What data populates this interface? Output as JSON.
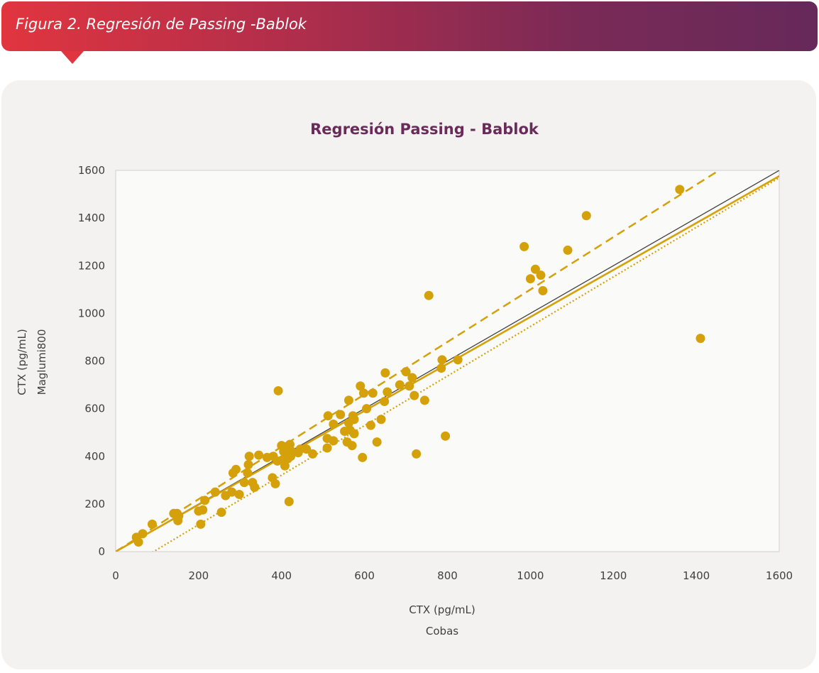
{
  "figure": {
    "caption": "Figura 2. Regresión de Passing -Bablok"
  },
  "colors": {
    "accent": "#d4a10a",
    "identity": "#404040",
    "title": "#6b2b5a"
  },
  "chart_data": {
    "type": "scatter",
    "title": "Regresión Passing - Bablok",
    "xlabel": "CTX (pg/mL)",
    "xsublabel": "Cobas",
    "ylabel": "CTX (pg/mL)",
    "ysublabel": "Maglumi800",
    "xlim": [
      0,
      1600
    ],
    "ylim": [
      0,
      1600
    ],
    "xticks": [
      0,
      200,
      400,
      600,
      800,
      1000,
      1200,
      1400,
      1600
    ],
    "yticks": [
      0,
      200,
      400,
      600,
      800,
      1000,
      1200,
      1400,
      1600
    ],
    "grid": false,
    "points": [
      [
        50,
        60
      ],
      [
        55,
        40
      ],
      [
        65,
        75
      ],
      [
        88,
        115
      ],
      [
        140,
        160
      ],
      [
        148,
        160
      ],
      [
        150,
        130
      ],
      [
        152,
        150
      ],
      [
        200,
        170
      ],
      [
        205,
        115
      ],
      [
        210,
        175
      ],
      [
        215,
        215
      ],
      [
        240,
        250
      ],
      [
        255,
        165
      ],
      [
        265,
        235
      ],
      [
        280,
        250
      ],
      [
        283,
        330
      ],
      [
        290,
        345
      ],
      [
        298,
        240
      ],
      [
        310,
        290
      ],
      [
        318,
        330
      ],
      [
        320,
        365
      ],
      [
        322,
        400
      ],
      [
        330,
        290
      ],
      [
        335,
        270
      ],
      [
        345,
        405
      ],
      [
        365,
        395
      ],
      [
        378,
        310
      ],
      [
        380,
        400
      ],
      [
        385,
        285
      ],
      [
        390,
        380
      ],
      [
        392,
        675
      ],
      [
        400,
        445
      ],
      [
        402,
        385
      ],
      [
        405,
        420
      ],
      [
        408,
        360
      ],
      [
        410,
        440
      ],
      [
        412,
        420
      ],
      [
        415,
        390
      ],
      [
        418,
        210
      ],
      [
        420,
        450
      ],
      [
        422,
        400
      ],
      [
        425,
        420
      ],
      [
        440,
        415
      ],
      [
        445,
        430
      ],
      [
        460,
        430
      ],
      [
        475,
        410
      ],
      [
        510,
        435
      ],
      [
        510,
        475
      ],
      [
        512,
        570
      ],
      [
        525,
        465
      ],
      [
        525,
        535
      ],
      [
        542,
        575
      ],
      [
        552,
        505
      ],
      [
        558,
        460
      ],
      [
        562,
        635
      ],
      [
        562,
        540
      ],
      [
        565,
        510
      ],
      [
        570,
        445
      ],
      [
        572,
        570
      ],
      [
        575,
        495
      ],
      [
        575,
        555
      ],
      [
        590,
        695
      ],
      [
        595,
        395
      ],
      [
        598,
        665
      ],
      [
        605,
        600
      ],
      [
        615,
        530
      ],
      [
        620,
        665
      ],
      [
        630,
        460
      ],
      [
        640,
        555
      ],
      [
        648,
        630
      ],
      [
        650,
        750
      ],
      [
        655,
        670
      ],
      [
        685,
        700
      ],
      [
        700,
        755
      ],
      [
        708,
        695
      ],
      [
        715,
        730
      ],
      [
        720,
        655
      ],
      [
        725,
        410
      ],
      [
        745,
        635
      ],
      [
        755,
        1075
      ],
      [
        785,
        770
      ],
      [
        787,
        805
      ],
      [
        795,
        485
      ],
      [
        825,
        805
      ],
      [
        985,
        1280
      ],
      [
        1000,
        1145
      ],
      [
        1012,
        1185
      ],
      [
        1025,
        1160
      ],
      [
        1030,
        1095
      ],
      [
        1090,
        1265
      ],
      [
        1135,
        1410
      ],
      [
        1360,
        1520
      ],
      [
        1410,
        895
      ]
    ],
    "lines": [
      {
        "style": "dashed",
        "intercept": 0,
        "slope": 1.1
      },
      {
        "style": "identity",
        "intercept": 0,
        "slope": 1.0
      },
      {
        "style": "solid",
        "intercept": 0,
        "slope": 0.985
      },
      {
        "style": "dotted",
        "intercept": -95,
        "slope": 1.04
      }
    ]
  }
}
